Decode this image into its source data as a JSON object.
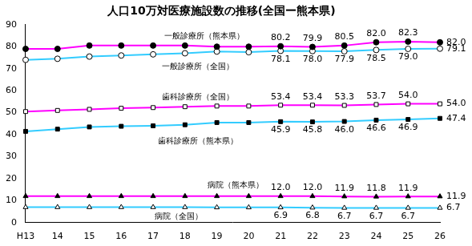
{
  "chart_data": {
    "type": "line",
    "title": "人口10万対医療施設数の推移(全国ー熊本県)",
    "categories": [
      "H13",
      "14",
      "15",
      "16",
      "17",
      "18",
      "19",
      "20",
      "21",
      "22",
      "23",
      "24",
      "25",
      "26"
    ],
    "ylim": [
      0,
      90
    ],
    "yticks": [
      0,
      10,
      20,
      30,
      40,
      50,
      60,
      70,
      80,
      90
    ],
    "grid": false,
    "data_labels": true,
    "series": [
      {
        "name": "一般診療所（熊本県）",
        "color": "#ff00ff",
        "marker": "filled_circle",
        "values": [
          79.0,
          79.0,
          80.5,
          80.5,
          80.5,
          80.5,
          80.0,
          80.0,
          80.2,
          79.9,
          80.5,
          82.0,
          82.3,
          82.0
        ],
        "value_labels": [
          null,
          null,
          null,
          null,
          null,
          null,
          null,
          null,
          "80.2",
          "79.9",
          "80.5",
          "82.0",
          "82.3",
          "82.0"
        ]
      },
      {
        "name": "一般診療所（全国）",
        "color": "#33ccff",
        "marker": "open_circle",
        "values": [
          74.0,
          74.5,
          75.5,
          76.0,
          76.5,
          77.0,
          77.8,
          77.5,
          78.1,
          78.0,
          77.9,
          78.5,
          79.0,
          79.1
        ],
        "value_labels": [
          null,
          null,
          null,
          null,
          null,
          null,
          null,
          null,
          "78.1",
          "78.0",
          "77.9",
          "78.5",
          "79.0",
          "79.1"
        ]
      },
      {
        "name": "歯科診療所（全国）",
        "color": "#ff00ff",
        "marker": "open_square",
        "values": [
          50.5,
          51.0,
          51.5,
          52.0,
          52.3,
          52.7,
          53.0,
          53.0,
          53.4,
          53.4,
          53.3,
          53.7,
          54.0,
          54.0
        ],
        "value_labels": [
          null,
          null,
          null,
          null,
          null,
          null,
          null,
          null,
          "53.4",
          "53.4",
          "53.3",
          "53.7",
          "54.0",
          "54.0"
        ]
      },
      {
        "name": "歯科診療所（熊本県）",
        "color": "#33ccff",
        "marker": "filled_square",
        "values": [
          41.5,
          42.5,
          43.5,
          43.8,
          44.0,
          44.5,
          45.5,
          45.5,
          45.9,
          45.8,
          46.0,
          46.6,
          46.9,
          47.4
        ],
        "value_labels": [
          null,
          null,
          null,
          null,
          null,
          null,
          null,
          null,
          "45.9",
          "45.8",
          "46.0",
          "46.6",
          "46.9",
          "47.4"
        ]
      },
      {
        "name": "病院（熊本県）",
        "color": "#ff00ff",
        "marker": "filled_triangle",
        "values": [
          12.0,
          12.0,
          12.0,
          12.0,
          12.0,
          12.0,
          12.0,
          12.0,
          12.0,
          12.0,
          11.9,
          11.8,
          11.9,
          11.9
        ],
        "value_labels": [
          null,
          null,
          null,
          null,
          null,
          null,
          null,
          null,
          "12.0",
          "12.0",
          "11.9",
          "11.8",
          "11.9",
          "11.9"
        ]
      },
      {
        "name": "病院（全国）",
        "color": "#33ccff",
        "marker": "open_triangle",
        "values": [
          7.0,
          7.0,
          7.0,
          7.0,
          7.0,
          7.0,
          6.9,
          6.9,
          6.9,
          6.8,
          6.7,
          6.7,
          6.7,
          6.7
        ],
        "value_labels": [
          null,
          null,
          null,
          null,
          null,
          null,
          null,
          null,
          "6.9",
          "6.8",
          "6.7",
          "6.7",
          "6.7",
          "6.7"
        ]
      }
    ]
  }
}
